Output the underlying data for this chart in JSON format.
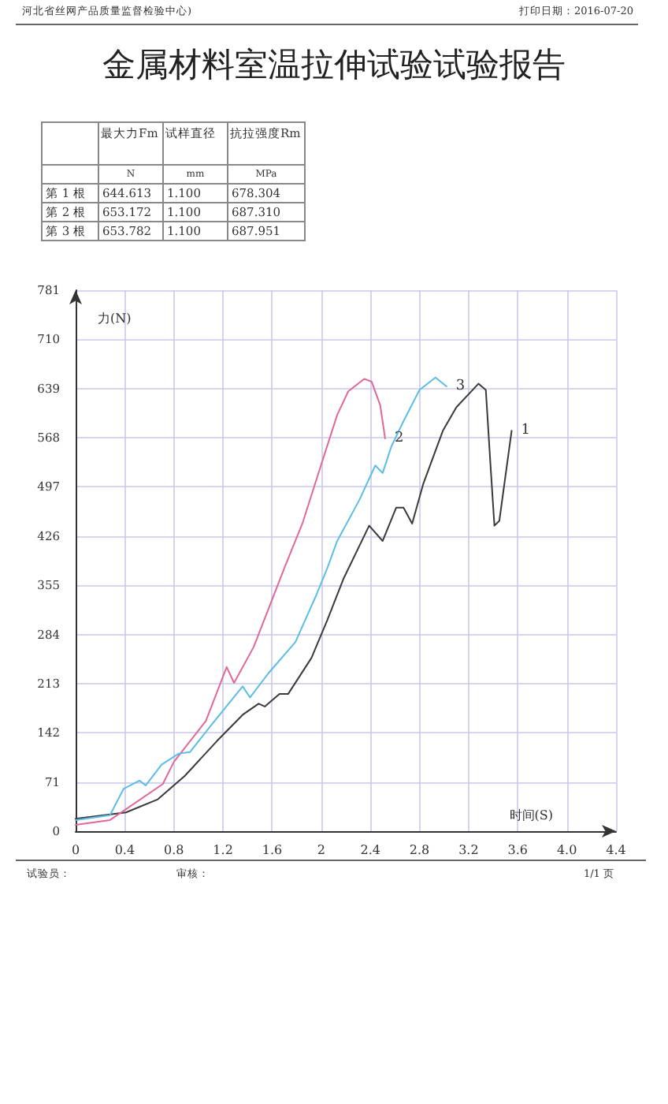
{
  "chart_data": [
    {
      "type": "other",
      "title": "金属材料室温拉伸试验试验报告",
      "annotations": [
        "河北省丝网产品质量监督检验中心)",
        "打印日期：2016-07-20"
      ],
      "categories": [
        "最大力Fm",
        "试样直径",
        "抗拉强度Rm"
      ],
      "y_categories": [
        null,
        "第 1 根",
        "第 2 根",
        "第 3 根"
      ],
      "cell_labels": [
        [
          "N",
          "mm",
          "MPa"
        ],
        [
          "644.613",
          "1.100",
          "678.304"
        ],
        [
          "653.172",
          "1.100",
          "687.310"
        ],
        [
          "653.782",
          "1.100",
          "687.951"
        ]
      ]
    },
    {
      "type": "line",
      "xlabel": "时间(S)",
      "ylabel": "力(N)",
      "annotations": [
        "试验员：",
        "审核：",
        "1/1 页"
      ],
      "xlim": [
        0,
        4.4
      ],
      "ylim": [
        0,
        781
      ],
      "xticks": [
        0,
        0.4,
        0.8,
        1.2,
        1.6,
        2,
        2.4,
        2.8,
        3.2,
        3.6,
        {
          "value": 4,
          "label": "4.0"
        },
        4.4
      ],
      "yticks": [
        0,
        71,
        142,
        213,
        284,
        355,
        426,
        497,
        568,
        639,
        710,
        781
      ],
      "grid": true,
      "legend": false,
      "marker": "none",
      "line_style": "solid",
      "series": [
        {
          "name": "1",
          "color": "#3a3a3a",
          "x": [
            0,
            0.41,
            0.67,
            0.89,
            1.15,
            1.36,
            1.49,
            1.54,
            1.66,
            1.73,
            1.92,
            2.05,
            2.18,
            2.39,
            2.5,
            2.61,
            2.67,
            2.74,
            2.83,
            2.99,
            3.1,
            3.28,
            3.34,
            3.38,
            3.41,
            3.45,
            3.55
          ],
          "values": [
            18,
            27,
            46,
            80,
            130,
            168,
            184,
            180,
            198,
            198,
            250,
            305,
            364,
            441,
            419,
            467,
            467,
            444,
            501,
            578,
            612,
            646,
            637,
            523,
            441,
            448,
            578
          ]
        },
        {
          "name": "2",
          "color": "#e0679a",
          "x": [
            0,
            0.28,
            0.71,
            0.8,
            1.06,
            1.23,
            1.29,
            1.45,
            1.7,
            1.85,
            1.99,
            2.13,
            2.22,
            2.35,
            2.41,
            2.48,
            2.52
          ],
          "values": [
            9,
            16,
            68,
            100,
            159,
            237,
            214,
            266,
            380,
            446,
            524,
            601,
            635,
            653,
            649,
            615,
            567
          ]
        },
        {
          "name": "3",
          "color": "#5cbce6",
          "x": [
            0,
            0.28,
            0.39,
            0.52,
            0.57,
            0.7,
            0.84,
            0.93,
            1.1,
            1.36,
            1.42,
            1.57,
            1.79,
            1.96,
            2.05,
            2.13,
            2.31,
            2.44,
            2.5,
            2.57,
            2.67,
            2.8,
            2.93,
            3.02
          ],
          "values": [
            16,
            23,
            61,
            73,
            66,
            96,
            112,
            114,
            152,
            209,
            193,
            228,
            273,
            341,
            380,
            419,
            478,
            528,
            517,
            555,
            592,
            637,
            655,
            642
          ]
        }
      ]
    }
  ]
}
